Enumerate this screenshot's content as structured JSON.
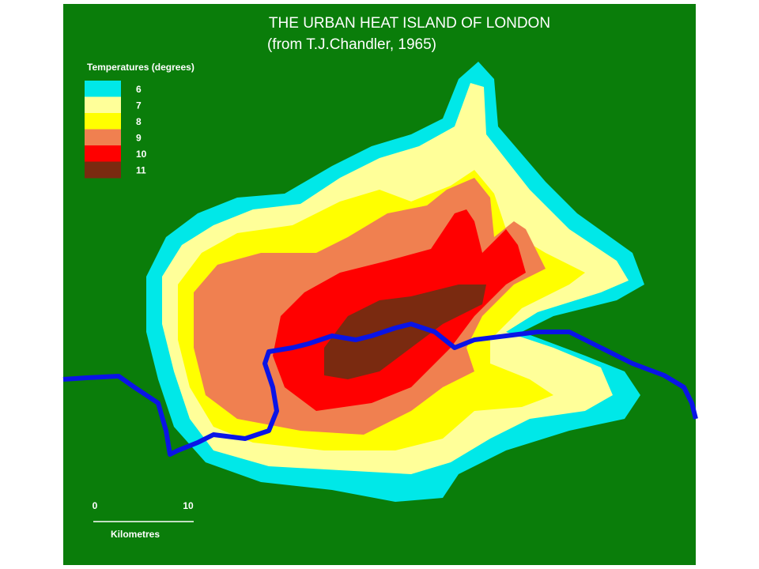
{
  "title": "THE URBAN HEAT ISLAND OF LONDON",
  "subtitle": "(from T.J.Chandler, 1965)",
  "legend": {
    "title": "Temperatures (degrees)",
    "items": [
      {
        "label": "6",
        "color": "#00e8e8"
      },
      {
        "label": "7",
        "color": "#ffff99"
      },
      {
        "label": "8",
        "color": "#ffff00"
      },
      {
        "label": "9",
        "color": "#f08050"
      },
      {
        "label": "10",
        "color": "#ff0000"
      },
      {
        "label": "11",
        "color": "#7a2a10"
      }
    ]
  },
  "scale": {
    "start": "0",
    "end": "10",
    "unit": "Kilometres"
  }
}
